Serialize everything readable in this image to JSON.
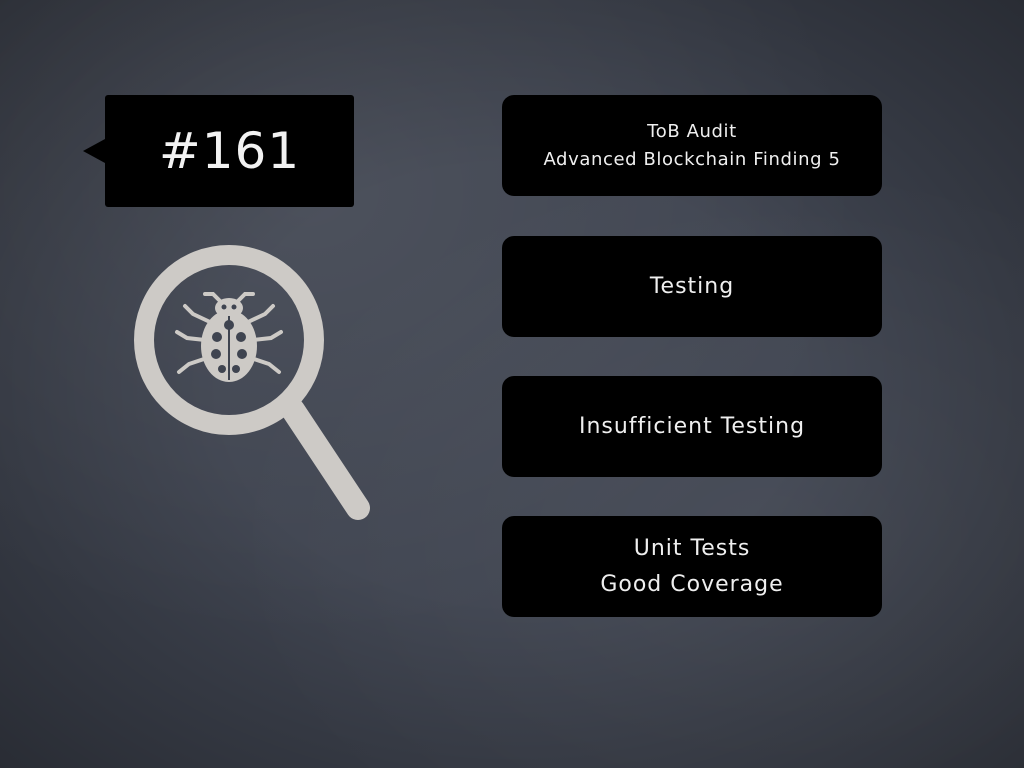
{
  "issue": {
    "number": "#161"
  },
  "cards": {
    "source": {
      "line1": "ToB Audit",
      "line2": "Advanced Blockchain Finding 5"
    },
    "category": {
      "label": "Testing"
    },
    "finding": {
      "label": "Insufficient Testing"
    },
    "notes": {
      "line1": "Unit Tests",
      "line2": "Good Coverage"
    }
  },
  "icons": {
    "illustration": "magnifier-bug-icon"
  },
  "colors": {
    "background": "#3f4450",
    "card": "#000000",
    "text": "#efefef",
    "illustration": "#cdcac6"
  }
}
